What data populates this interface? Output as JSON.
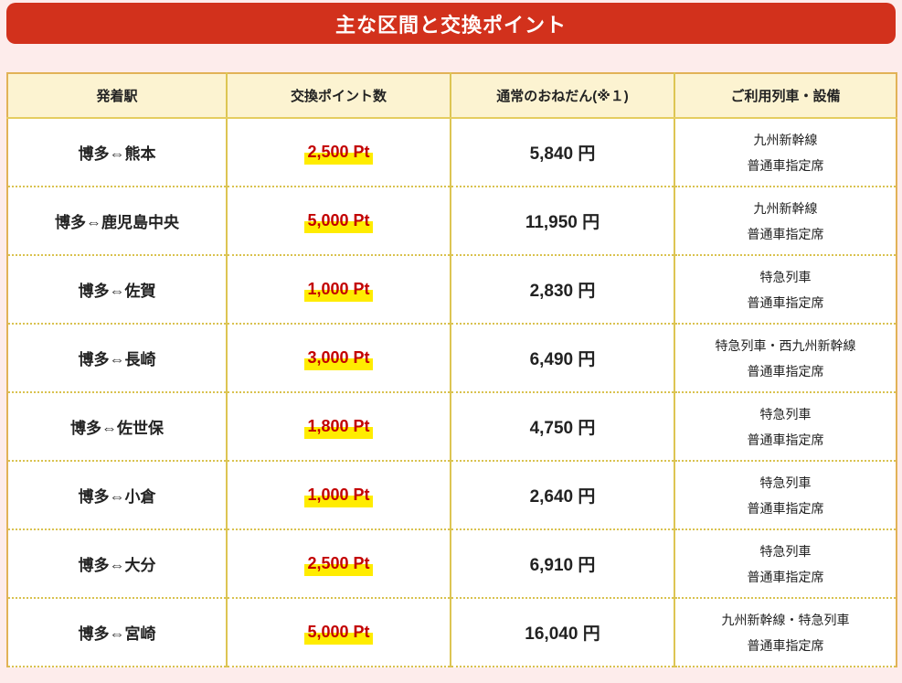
{
  "page": {
    "title": "主な区間と交換ポイント"
  },
  "colors": {
    "banner_background": "#d2311c",
    "banner_text": "#ffffff",
    "page_background": "#fdeceb",
    "header_cell_background": "#fcf3d1",
    "table_border_gold": "#e2b257",
    "divider_gold": "#ddc553",
    "points_text_red": "#c30000",
    "points_highlight_yellow": "#ffec00"
  },
  "table": {
    "headers": [
      "発着駅",
      "交換ポイント数",
      "通常のおねだん(※１)",
      "ご利用列車・設備"
    ],
    "rows": [
      {
        "route": "博多⇔熊本",
        "points": "2,500 Pt",
        "price": "5,840 円",
        "train": "九州新幹線",
        "seat": "普通車指定席"
      },
      {
        "route": "博多⇔鹿児島中央",
        "points": "5,000 Pt",
        "price": "11,950 円",
        "train": "九州新幹線",
        "seat": "普通車指定席"
      },
      {
        "route": "博多⇔佐賀",
        "points": "1,000 Pt",
        "price": "2,830 円",
        "train": "特急列車",
        "seat": "普通車指定席"
      },
      {
        "route": "博多⇔長崎",
        "points": "3,000 Pt",
        "price": "6,490 円",
        "train": "特急列車・西九州新幹線",
        "seat": "普通車指定席"
      },
      {
        "route": "博多⇔佐世保",
        "points": "1,800 Pt",
        "price": "4,750 円",
        "train": "特急列車",
        "seat": "普通車指定席"
      },
      {
        "route": "博多⇔小倉",
        "points": "1,000 Pt",
        "price": "2,640 円",
        "train": "特急列車",
        "seat": "普通車指定席"
      },
      {
        "route": "博多⇔大分",
        "points": "2,500 Pt",
        "price": "6,910 円",
        "train": "特急列車",
        "seat": "普通車指定席"
      },
      {
        "route": "博多⇔宮崎",
        "points": "5,000 Pt",
        "price": "16,040 円",
        "train": "九州新幹線・特急列車",
        "seat": "普通車指定席"
      }
    ]
  }
}
